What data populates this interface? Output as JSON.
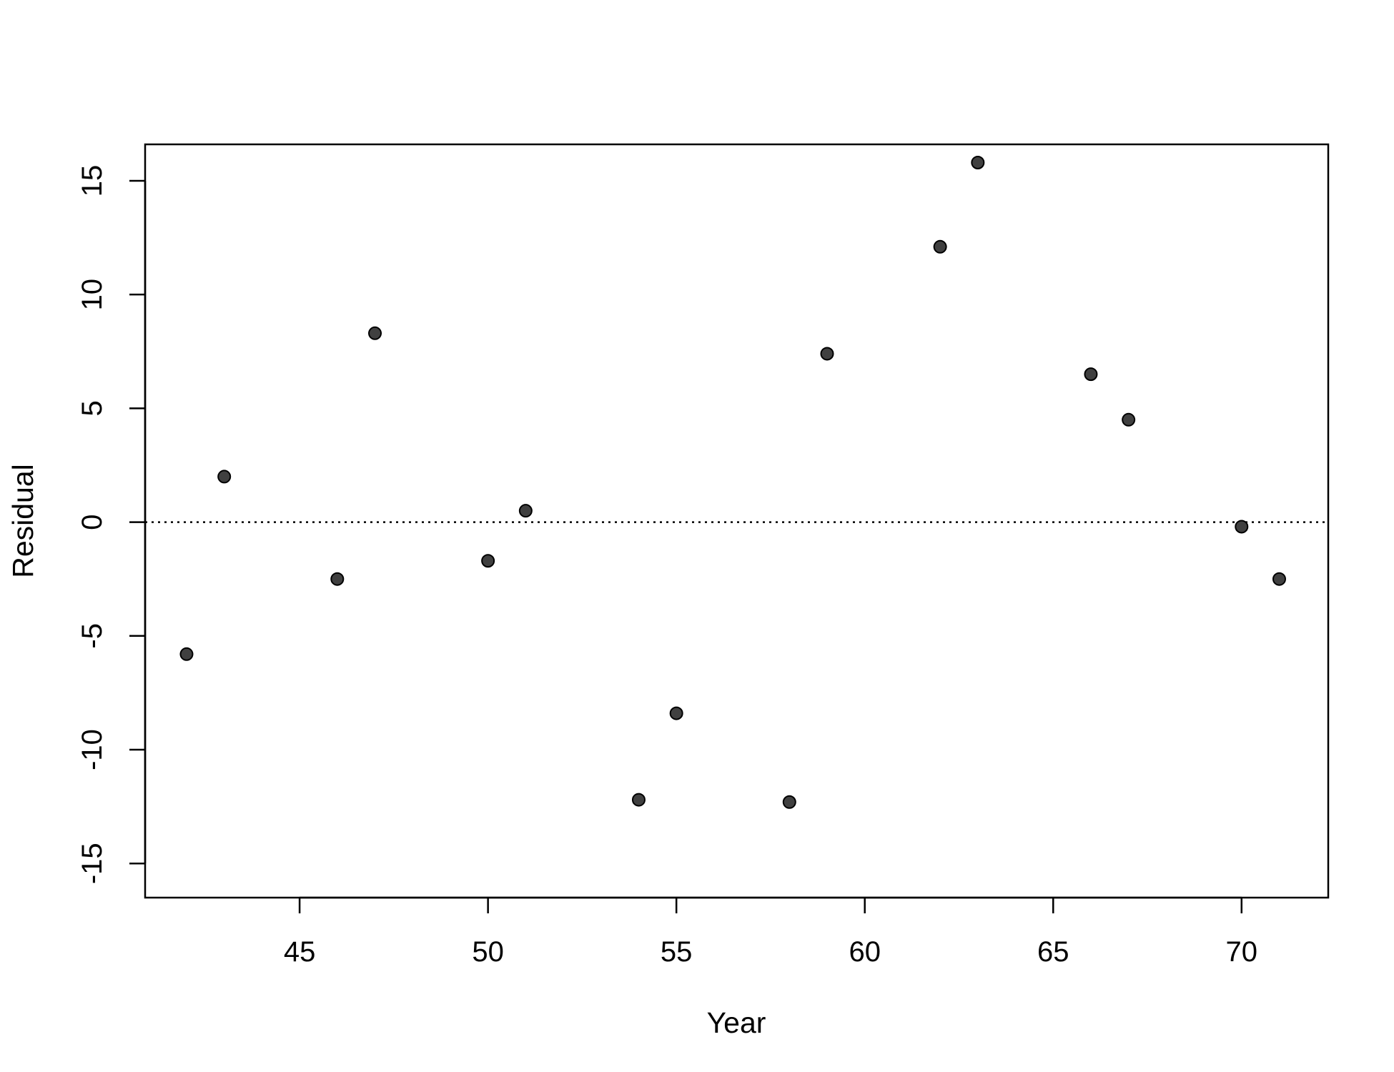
{
  "chart_data": {
    "type": "scatter",
    "title": "",
    "xlabel": "Year",
    "ylabel": "Residual",
    "xlim": [
      40.9,
      72.3
    ],
    "ylim": [
      -16.5,
      16.6
    ],
    "xticks": [
      45,
      50,
      55,
      60,
      65,
      70
    ],
    "yticks": [
      -15,
      -10,
      -5,
      0,
      5,
      10,
      15
    ],
    "reference_line": {
      "y": 0,
      "style": "dotted"
    },
    "grid": false,
    "point_color": "#404040",
    "series": [
      {
        "points": [
          {
            "x": 42,
            "y": -5.8
          },
          {
            "x": 43,
            "y": 2.0
          },
          {
            "x": 46,
            "y": -2.5
          },
          {
            "x": 47,
            "y": 8.3
          },
          {
            "x": 50,
            "y": -1.7
          },
          {
            "x": 51,
            "y": 0.5
          },
          {
            "x": 54,
            "y": -12.2
          },
          {
            "x": 55,
            "y": -8.4
          },
          {
            "x": 58,
            "y": -12.3
          },
          {
            "x": 59,
            "y": 7.4
          },
          {
            "x": 62,
            "y": 12.1
          },
          {
            "x": 63,
            "y": 15.8
          },
          {
            "x": 66,
            "y": 6.5
          },
          {
            "x": 67,
            "y": 4.5
          },
          {
            "x": 70,
            "y": -0.2
          },
          {
            "x": 71,
            "y": -2.5
          }
        ]
      }
    ]
  }
}
